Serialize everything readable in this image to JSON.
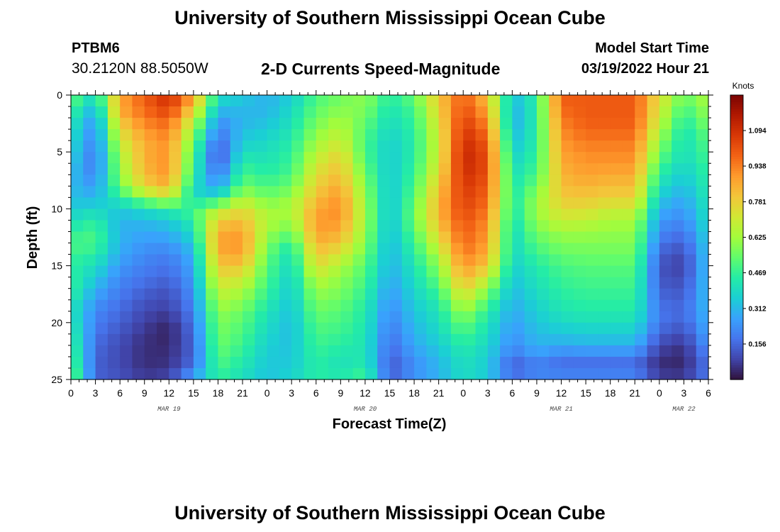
{
  "header": {
    "title": "University of Southern Mississippi Ocean Cube",
    "station_id": "PTBM6",
    "station_coords": "30.2120N  88.5050W",
    "plot_title": "2-D Currents Speed-Magnitude",
    "start_label": "Model Start Time",
    "start_value": "03/19/2022 Hour 21"
  },
  "footer": {
    "title": "University of Southern Mississippi Ocean Cube"
  },
  "chart_data": {
    "type": "heatmap",
    "title": "2-D Currents Speed-Magnitude",
    "xlabel": "Forecast Time(Z)",
    "ylabel": "Depth (ft)",
    "x_range_hours": [
      0,
      78
    ],
    "x_origin": "MAR 19 00Z",
    "y_range": [
      0,
      25
    ],
    "y_ticks": [
      "0",
      "5",
      "10",
      "15",
      "20",
      "25"
    ],
    "x_ticks": [
      "0",
      "3",
      "6",
      "9",
      "12",
      "15",
      "18",
      "21",
      "0",
      "3",
      "6",
      "9",
      "12",
      "15",
      "18",
      "21",
      "0",
      "3",
      "6",
      "9",
      "12",
      "15",
      "18",
      "21",
      "0",
      "3",
      "6"
    ],
    "day_labels": [
      {
        "label": "MAR 19",
        "hour": 12
      },
      {
        "label": "MAR 20",
        "hour": 36
      },
      {
        "label": "MAR 21",
        "hour": 60
      },
      {
        "label": "MAR 22",
        "hour": 75
      }
    ],
    "colorbar": {
      "unit": "Knots",
      "min": 0.0,
      "max": 1.25,
      "ticks": [
        "1.094",
        "0.938",
        "0.781",
        "0.625",
        "0.469",
        "0.312",
        "0.156"
      ],
      "colors": [
        "#30123b",
        "#4145ab",
        "#4675ed",
        "#39a2fc",
        "#1bcfd4",
        "#24eca6",
        "#61fc6c",
        "#a4fc3b",
        "#d1e834",
        "#f3c63a",
        "#fe9b2d",
        "#f36315",
        "#d93806",
        "#b11901",
        "#7a0403"
      ]
    },
    "depths_ft": [
      0,
      1,
      2,
      3,
      4,
      5,
      6,
      7,
      8,
      9,
      10,
      11,
      12,
      13,
      14,
      15,
      16,
      17,
      18,
      19,
      20,
      21,
      22,
      23,
      24,
      25
    ],
    "time_knots_hours": [
      0,
      3,
      6,
      9,
      12,
      15,
      18,
      21,
      24,
      27,
      30,
      33,
      36,
      39,
      42,
      45,
      48,
      51,
      54,
      57,
      60,
      63,
      66,
      69,
      72,
      75,
      78
    ],
    "speed_profiles_knots": [
      [
        0.55,
        0.5,
        0.45,
        0.42,
        0.4,
        0.38,
        0.35,
        0.33,
        0.32,
        0.33,
        0.35,
        0.4,
        0.45,
        0.5,
        0.48,
        0.45,
        0.47,
        0.48,
        0.45,
        0.42,
        0.45,
        0.47,
        0.5,
        0.52,
        0.55,
        0.58
      ],
      [
        0.4,
        0.32,
        0.25,
        0.22,
        0.2,
        0.18,
        0.18,
        0.2,
        0.25,
        0.3,
        0.38,
        0.45,
        0.5,
        0.5,
        0.45,
        0.4,
        0.35,
        0.3,
        0.25,
        0.22,
        0.2,
        0.18,
        0.16,
        0.15,
        0.14,
        0.15
      ],
      [
        0.85,
        0.88,
        0.82,
        0.75,
        0.7,
        0.65,
        0.62,
        0.6,
        0.55,
        0.45,
        0.35,
        0.3,
        0.3,
        0.3,
        0.28,
        0.25,
        0.22,
        0.2,
        0.18,
        0.16,
        0.14,
        0.12,
        0.1,
        0.1,
        0.1,
        0.12
      ],
      [
        1.0,
        0.98,
        0.95,
        0.9,
        0.86,
        0.85,
        0.85,
        0.82,
        0.78,
        0.6,
        0.4,
        0.32,
        0.28,
        0.25,
        0.22,
        0.2,
        0.18,
        0.15,
        0.12,
        0.1,
        0.08,
        0.06,
        0.05,
        0.05,
        0.05,
        0.08
      ],
      [
        1.1,
        1.08,
        1.0,
        0.95,
        0.92,
        0.9,
        0.92,
        0.9,
        0.85,
        0.7,
        0.45,
        0.35,
        0.3,
        0.25,
        0.2,
        0.18,
        0.15,
        0.12,
        0.1,
        0.08,
        0.04,
        0.03,
        0.04,
        0.05,
        0.06,
        0.1
      ],
      [
        0.9,
        0.8,
        0.7,
        0.62,
        0.55,
        0.5,
        0.48,
        0.45,
        0.4,
        0.38,
        0.5,
        0.45,
        0.4,
        0.35,
        0.3,
        0.28,
        0.26,
        0.24,
        0.22,
        0.2,
        0.18,
        0.16,
        0.15,
        0.15,
        0.18,
        0.3
      ],
      [
        0.4,
        0.35,
        0.25,
        0.2,
        0.15,
        0.1,
        0.12,
        0.18,
        0.25,
        0.4,
        0.65,
        0.78,
        0.85,
        0.88,
        0.85,
        0.8,
        0.75,
        0.7,
        0.65,
        0.6,
        0.58,
        0.56,
        0.55,
        0.52,
        0.5,
        0.45
      ],
      [
        0.35,
        0.32,
        0.3,
        0.32,
        0.35,
        0.4,
        0.45,
        0.5,
        0.55,
        0.65,
        0.75,
        0.82,
        0.88,
        0.9,
        0.88,
        0.8,
        0.72,
        0.65,
        0.6,
        0.55,
        0.52,
        0.5,
        0.48,
        0.45,
        0.42,
        0.4
      ],
      [
        0.3,
        0.3,
        0.32,
        0.35,
        0.38,
        0.4,
        0.42,
        0.45,
        0.5,
        0.55,
        0.62,
        0.65,
        0.62,
        0.58,
        0.54,
        0.52,
        0.5,
        0.48,
        0.45,
        0.42,
        0.4,
        0.38,
        0.36,
        0.35,
        0.34,
        0.33
      ],
      [
        0.35,
        0.38,
        0.4,
        0.42,
        0.44,
        0.46,
        0.48,
        0.5,
        0.55,
        0.6,
        0.65,
        0.6,
        0.55,
        0.45,
        0.4,
        0.38,
        0.36,
        0.35,
        0.34,
        0.33,
        0.32,
        0.32,
        0.33,
        0.34,
        0.35,
        0.38
      ],
      [
        0.5,
        0.52,
        0.55,
        0.58,
        0.62,
        0.66,
        0.7,
        0.75,
        0.78,
        0.82,
        0.86,
        0.9,
        0.88,
        0.85,
        0.8,
        0.75,
        0.68,
        0.62,
        0.58,
        0.55,
        0.52,
        0.5,
        0.48,
        0.46,
        0.45,
        0.45
      ],
      [
        0.55,
        0.58,
        0.62,
        0.66,
        0.7,
        0.75,
        0.8,
        0.82,
        0.86,
        0.9,
        0.92,
        0.9,
        0.86,
        0.8,
        0.72,
        0.65,
        0.6,
        0.58,
        0.55,
        0.52,
        0.5,
        0.48,
        0.45,
        0.42,
        0.4,
        0.45
      ],
      [
        0.6,
        0.58,
        0.55,
        0.52,
        0.5,
        0.5,
        0.52,
        0.55,
        0.58,
        0.6,
        0.62,
        0.62,
        0.6,
        0.58,
        0.55,
        0.52,
        0.5,
        0.48,
        0.45,
        0.44,
        0.43,
        0.42,
        0.42,
        0.42,
        0.45,
        0.5
      ],
      [
        0.45,
        0.42,
        0.4,
        0.38,
        0.36,
        0.35,
        0.35,
        0.34,
        0.34,
        0.33,
        0.33,
        0.32,
        0.32,
        0.31,
        0.3,
        0.3,
        0.28,
        0.26,
        0.24,
        0.22,
        0.2,
        0.18,
        0.16,
        0.14,
        0.12,
        0.15
      ],
      [
        0.55,
        0.5,
        0.48,
        0.46,
        0.45,
        0.45,
        0.46,
        0.48,
        0.5,
        0.52,
        0.55,
        0.55,
        0.52,
        0.48,
        0.45,
        0.42,
        0.4,
        0.38,
        0.36,
        0.34,
        0.32,
        0.3,
        0.28,
        0.25,
        0.22,
        0.25
      ],
      [
        0.8,
        0.78,
        0.75,
        0.72,
        0.7,
        0.7,
        0.72,
        0.75,
        0.8,
        0.82,
        0.85,
        0.82,
        0.78,
        0.72,
        0.65,
        0.6,
        0.55,
        0.5,
        0.45,
        0.42,
        0.4,
        0.38,
        0.35,
        0.32,
        0.3,
        0.3
      ],
      [
        1.0,
        1.02,
        1.05,
        1.08,
        1.1,
        1.12,
        1.12,
        1.1,
        1.08,
        1.06,
        1.05,
        1.02,
        1.0,
        0.98,
        0.95,
        0.9,
        0.85,
        0.78,
        0.7,
        0.62,
        0.55,
        0.5,
        0.45,
        0.42,
        0.4,
        0.4
      ],
      [
        0.8,
        0.85,
        0.9,
        0.95,
        1.0,
        1.02,
        1.03,
        1.02,
        1.0,
        0.98,
        0.95,
        0.92,
        0.9,
        0.88,
        0.85,
        0.8,
        0.7,
        0.6,
        0.52,
        0.46,
        0.42,
        0.4,
        0.38,
        0.36,
        0.35,
        0.35
      ],
      [
        0.32,
        0.3,
        0.28,
        0.3,
        0.32,
        0.35,
        0.38,
        0.4,
        0.42,
        0.42,
        0.42,
        0.4,
        0.38,
        0.38,
        0.38,
        0.36,
        0.34,
        0.32,
        0.3,
        0.28,
        0.26,
        0.24,
        0.22,
        0.18,
        0.12,
        0.2
      ],
      [
        0.45,
        0.45,
        0.45,
        0.45,
        0.45,
        0.46,
        0.48,
        0.5,
        0.55,
        0.6,
        0.62,
        0.6,
        0.56,
        0.52,
        0.48,
        0.44,
        0.42,
        0.4,
        0.38,
        0.36,
        0.34,
        0.32,
        0.3,
        0.25,
        0.18,
        0.25
      ],
      [
        1.0,
        0.98,
        0.95,
        0.92,
        0.9,
        0.88,
        0.86,
        0.84,
        0.82,
        0.8,
        0.75,
        0.7,
        0.62,
        0.58,
        0.54,
        0.5,
        0.48,
        0.46,
        0.44,
        0.42,
        0.38,
        0.34,
        0.28,
        0.2,
        0.15,
        0.25
      ],
      [
        1.0,
        1.0,
        1.0,
        0.98,
        0.95,
        0.92,
        0.9,
        0.88,
        0.84,
        0.8,
        0.75,
        0.68,
        0.62,
        0.58,
        0.55,
        0.52,
        0.5,
        0.48,
        0.46,
        0.44,
        0.4,
        0.35,
        0.3,
        0.2,
        0.15,
        0.25
      ],
      [
        1.0,
        1.0,
        1.0,
        0.98,
        0.95,
        0.92,
        0.9,
        0.86,
        0.82,
        0.78,
        0.7,
        0.64,
        0.6,
        0.58,
        0.55,
        0.52,
        0.5,
        0.48,
        0.46,
        0.44,
        0.4,
        0.35,
        0.3,
        0.2,
        0.15,
        0.25
      ],
      [
        1.0,
        1.0,
        1.0,
        0.98,
        0.95,
        0.92,
        0.9,
        0.86,
        0.82,
        0.78,
        0.7,
        0.64,
        0.6,
        0.58,
        0.55,
        0.52,
        0.5,
        0.48,
        0.46,
        0.44,
        0.4,
        0.35,
        0.3,
        0.2,
        0.15,
        0.25
      ],
      [
        0.75,
        0.72,
        0.7,
        0.65,
        0.6,
        0.55,
        0.5,
        0.45,
        0.4,
        0.35,
        0.3,
        0.25,
        0.22,
        0.18,
        0.14,
        0.12,
        0.12,
        0.14,
        0.16,
        0.18,
        0.18,
        0.14,
        0.1,
        0.06,
        0.04,
        0.1
      ],
      [
        0.55,
        0.5,
        0.45,
        0.42,
        0.4,
        0.4,
        0.38,
        0.35,
        0.32,
        0.28,
        0.25,
        0.22,
        0.18,
        0.14,
        0.1,
        0.08,
        0.1,
        0.12,
        0.14,
        0.16,
        0.14,
        0.1,
        0.06,
        0.04,
        0.04,
        0.08
      ],
      [
        0.65,
        0.62,
        0.6,
        0.55,
        0.52,
        0.5,
        0.48,
        0.46,
        0.45,
        0.43,
        0.42,
        0.4,
        0.38,
        0.36,
        0.35,
        0.34,
        0.34,
        0.34,
        0.33,
        0.32,
        0.3,
        0.28,
        0.25,
        0.2,
        0.18,
        0.2
      ]
    ]
  }
}
